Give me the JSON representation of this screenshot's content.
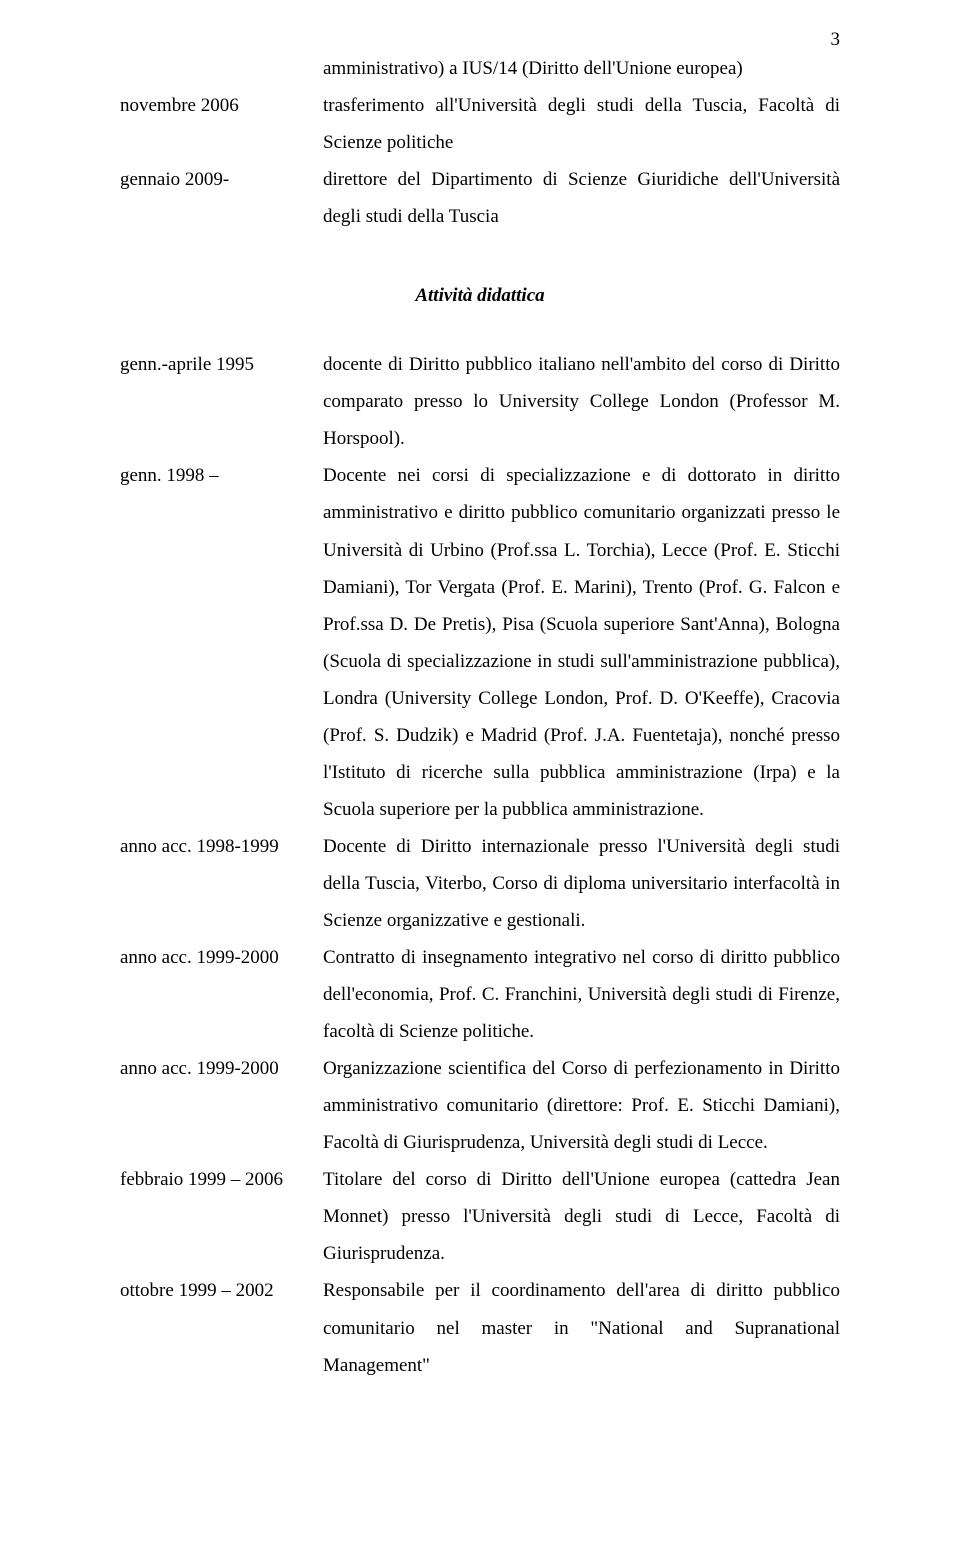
{
  "page_number": "3",
  "top_block": {
    "line_intro": "amministrativo) a IUS/14 (Diritto dell'Unione europea)",
    "rows": [
      {
        "label": "novembre 2006",
        "text": "trasferimento all'Università degli studi della Tuscia, Facoltà di Scienze politiche"
      },
      {
        "label": "gennaio 2009-",
        "text": "direttore del Dipartimento di Scienze Giuridiche dell'Università degli studi della Tuscia"
      }
    ]
  },
  "section_heading": "Attività didattica",
  "bottom_block": {
    "rows": [
      {
        "label": "genn.-aprile 1995",
        "text": "docente di Diritto pubblico italiano nell'ambito del corso di Diritto comparato presso lo University College London (Professor M. Horspool)."
      },
      {
        "label": "genn. 1998 –",
        "text": "Docente nei corsi di specializzazione e di dottorato in diritto amministrativo e diritto pubblico comunitario organizzati presso le Università di Urbino (Prof.ssa L. Torchia), Lecce (Prof. E. Sticchi Damiani), Tor Vergata (Prof. E. Marini), Trento (Prof. G. Falcon e Prof.ssa D. De Pretis), Pisa (Scuola superiore Sant'Anna), Bologna (Scuola di specializzazione in studi sull'amministrazione pubblica), Londra (University College London, Prof. D. O'Keeffe), Cracovia (Prof. S. Dudzik) e Madrid (Prof. J.A. Fuentetaja), nonché presso l'Istituto di ricerche sulla pubblica amministrazione (Irpa) e la Scuola superiore per la pubblica amministrazione."
      },
      {
        "label": "anno acc. 1998-1999",
        "text": "Docente di Diritto internazionale presso l'Università degli studi della Tuscia, Viterbo, Corso di diploma universitario interfacoltà in Scienze organizzative e gestionali."
      },
      {
        "label": "anno acc. 1999-2000",
        "text": "Contratto di insegnamento integrativo nel corso di diritto pubblico dell'economia, Prof. C. Franchini, Università degli studi di Firenze, facoltà di Scienze politiche."
      },
      {
        "label": "anno acc. 1999-2000",
        "text": "Organizzazione scientifica del Corso di perfezionamento in Diritto amministrativo comunitario (direttore: Prof. E. Sticchi Damiani), Facoltà di Giurisprudenza, Università degli studi di Lecce."
      },
      {
        "label": "febbraio 1999 – 2006",
        "text": "Titolare del corso di Diritto dell'Unione europea (cattedra Jean Monnet) presso l'Università degli studi di Lecce, Facoltà di Giurisprudenza."
      },
      {
        "label": "ottobre 1999 – 2002",
        "text": "Responsabile per il coordinamento dell'area di diritto pubblico comunitario nel master in \"National and Supranational Management\""
      }
    ]
  }
}
